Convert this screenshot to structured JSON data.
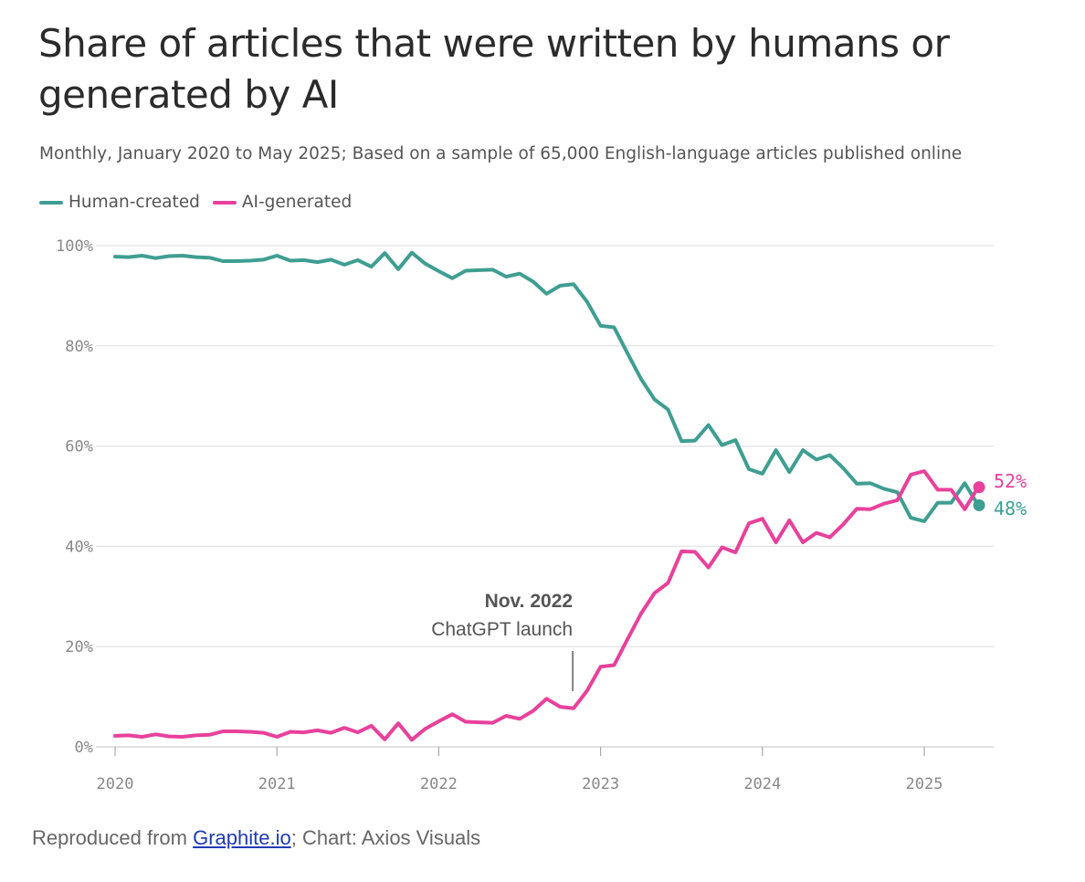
{
  "title": "Share of articles that were written by humans or generated by AI",
  "subtitle": "Monthly, January 2020 to May 2025; Based on a sample of 65,000 English-language articles published online",
  "footer": {
    "prefix": "Reproduced from ",
    "link": "Graphite.io",
    "suffix": "; Chart: Axios Visuals"
  },
  "colors": {
    "human": "#3f9e92",
    "ai": "#e8419b"
  },
  "chart_data": {
    "type": "line",
    "x_start": "2020-01",
    "x_end": "2025-05",
    "x_ticks": [
      "2020",
      "2021",
      "2022",
      "2023",
      "2024",
      "2025"
    ],
    "y_ticks": [
      "0%",
      "20%",
      "40%",
      "60%",
      "80%",
      "100%"
    ],
    "ylim": [
      0,
      100
    ],
    "grid": true,
    "legend_position": "top-left",
    "series": [
      {
        "name": "Human-created",
        "color": "#3f9e92",
        "end_label": "48%",
        "values": [
          97.8,
          97.7,
          98.0,
          97.5,
          97.9,
          98.0,
          97.7,
          97.6,
          96.9,
          96.9,
          97.0,
          97.2,
          98.0,
          97.0,
          97.1,
          96.7,
          97.2,
          96.2,
          97.1,
          95.8,
          98.5,
          95.3,
          98.6,
          96.4,
          94.9,
          93.5,
          95.0,
          95.1,
          95.2,
          93.8,
          94.4,
          92.8,
          90.4,
          92.0,
          92.3,
          88.8,
          84.0,
          83.7,
          78.5,
          73.4,
          69.3,
          67.3,
          61.0,
          61.1,
          64.2,
          60.2,
          61.2,
          55.4,
          54.5,
          59.2,
          54.8,
          59.2,
          57.3,
          58.2,
          55.6,
          52.5,
          52.6,
          51.5,
          50.8,
          45.7,
          45.0,
          48.7,
          48.7,
          52.6,
          48.2
        ]
      },
      {
        "name": "AI-generated",
        "color": "#e8419b",
        "end_label": "52%",
        "values": [
          2.2,
          2.3,
          2.0,
          2.5,
          2.1,
          2.0,
          2.3,
          2.4,
          3.1,
          3.1,
          3.0,
          2.8,
          2.0,
          3.0,
          2.9,
          3.3,
          2.8,
          3.8,
          2.9,
          4.2,
          1.5,
          4.7,
          1.4,
          3.6,
          5.1,
          6.5,
          5.0,
          4.9,
          4.8,
          6.2,
          5.6,
          7.2,
          9.6,
          8.0,
          7.7,
          11.2,
          16.0,
          16.3,
          21.5,
          26.6,
          30.7,
          32.7,
          39.0,
          38.9,
          35.8,
          39.8,
          38.8,
          44.6,
          45.5,
          40.8,
          45.2,
          40.8,
          42.7,
          41.8,
          44.4,
          47.5,
          47.4,
          48.5,
          49.2,
          54.3,
          55.0,
          51.3,
          51.3,
          47.4,
          51.8
        ]
      }
    ],
    "annotations": [
      {
        "x": "2022-11",
        "title": "Nov. 2022",
        "text": "ChatGPT launch"
      }
    ]
  }
}
